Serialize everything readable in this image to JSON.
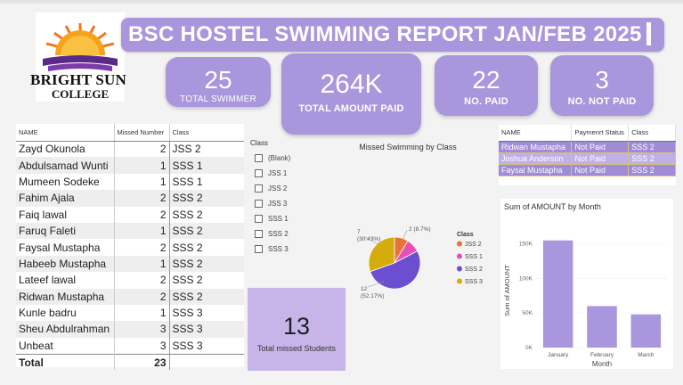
{
  "title": "BSC HOSTEL SWIMMING REPORT JAN/FEB 2025",
  "logo": {
    "brand": "BRIGHT SUN",
    "college": "COLLEGE"
  },
  "kpis": {
    "total_swimmer": {
      "value": "25",
      "label": "TOTAL SWIMMER"
    },
    "total_amount_paid": {
      "value": "264K",
      "label": "TOTAL AMOUNT PAID"
    },
    "no_paid": {
      "value": "22",
      "label": "NO. PAID"
    },
    "no_not_paid": {
      "value": "3",
      "label": "NO. NOT PAID"
    }
  },
  "missed_table": {
    "headers": [
      "NAME",
      "Missed Number",
      "Class"
    ],
    "rows": [
      {
        "name": "Zayd Okunola",
        "missed": "2",
        "class": "JSS 2"
      },
      {
        "name": "Abdulsamad Wunti",
        "missed": "1",
        "class": "SSS 1"
      },
      {
        "name": "Mumeen Sodeke",
        "missed": "1",
        "class": "SSS 1"
      },
      {
        "name": "Fahim Ajala",
        "missed": "2",
        "class": "SSS 2"
      },
      {
        "name": "Faiq lawal",
        "missed": "2",
        "class": "SSS 2"
      },
      {
        "name": "Faruq Faleti",
        "missed": "1",
        "class": "SSS 2"
      },
      {
        "name": "Faysal Mustapha",
        "missed": "2",
        "class": "SSS 2"
      },
      {
        "name": "Habeeb Mustapha",
        "missed": "1",
        "class": "SSS 2"
      },
      {
        "name": "Lateef lawal",
        "missed": "2",
        "class": "SSS 2"
      },
      {
        "name": "Ridwan Mustapha",
        "missed": "2",
        "class": "SSS 2"
      },
      {
        "name": "Kunle badru",
        "missed": "1",
        "class": "SSS 3"
      },
      {
        "name": "Sheu Abdulrahman",
        "missed": "3",
        "class": "SSS 3"
      },
      {
        "name": "Unbeat",
        "missed": "3",
        "class": "SSS 3"
      }
    ],
    "total_label": "Total",
    "total_value": "23"
  },
  "class_slicer": {
    "header": "Class",
    "options": [
      "(Blank)",
      "JSS 1",
      "JSS 2",
      "JSS 3",
      "SSS 1",
      "SSS 2",
      "SSS 3"
    ]
  },
  "missed_students": {
    "value": "13",
    "label": "Total missed Students"
  },
  "pie": {
    "title": "Missed Swimming by Class",
    "legend_title": "Class",
    "slices": [
      {
        "label": "JSS 2",
        "value": 2,
        "pct_text": "2 (8.7%)",
        "color": "#e8733a"
      },
      {
        "label": "SSS 1",
        "value": 2,
        "pct_text": "",
        "color": "#e64fb6"
      },
      {
        "label": "SSS 2",
        "value": 12,
        "pct_text": "12\n(52.17%)",
        "color": "#6c4fd0"
      },
      {
        "label": "SSS 3",
        "value": 7,
        "pct_text": "7\n(30.43%)",
        "color": "#d4ac0d"
      }
    ]
  },
  "not_paid_table": {
    "headers": [
      "NAME",
      "Paymenrt Status",
      "Class"
    ],
    "rows": [
      {
        "name": "Ridwan Mustapha",
        "status": "Not Paid",
        "class": "SSS 2"
      },
      {
        "name": "Joshua Anderson",
        "status": "Not Paid",
        "class": "SSS 2"
      },
      {
        "name": "Faysal Mustapha",
        "status": "Not Paid",
        "class": "SSS 2"
      }
    ]
  },
  "chart_data": {
    "type": "bar",
    "title": "Sum of AMOUNT by Month",
    "categories": [
      "January",
      "February",
      "March"
    ],
    "values": [
      155000,
      60000,
      48000
    ],
    "xlabel": "Month",
    "ylabel": "Sum of AMOUNT",
    "ylim": [
      0,
      150000
    ],
    "yticks": [
      "0K",
      "50K",
      "100K",
      "150K"
    ],
    "bar_color": "#a996dc"
  }
}
